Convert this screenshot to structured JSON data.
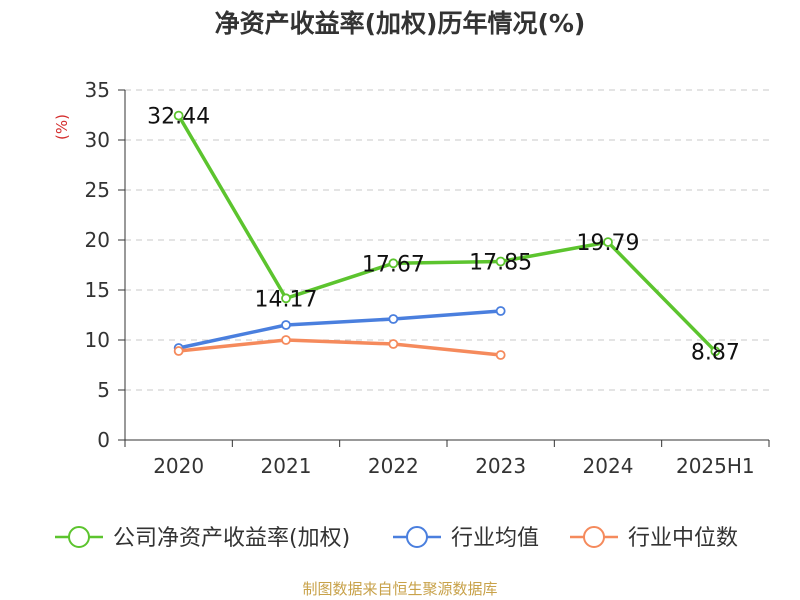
{
  "chart_data": {
    "type": "line",
    "title": "净资产收益率(加权)历年情况(%)",
    "ylabel": "(%)",
    "categories": [
      "2020",
      "2021",
      "2022",
      "2023",
      "2024",
      "2025H1"
    ],
    "ylim": [
      0,
      35
    ],
    "yticks": [
      0,
      5,
      10,
      15,
      20,
      25,
      30,
      35
    ],
    "grid": true,
    "legend_position": "bottom",
    "series": [
      {
        "name": "公司净资产收益率(加权)",
        "color": "#5cc42e",
        "values": [
          32.44,
          14.17,
          17.67,
          17.85,
          19.79,
          8.87
        ],
        "labels": [
          "32.44",
          "14.17",
          "17.67",
          "17.85",
          "19.79",
          "8.87"
        ]
      },
      {
        "name": "行业均值",
        "color": "#4a7fde",
        "values": [
          9.2,
          11.5,
          12.1,
          12.9,
          null,
          null
        ]
      },
      {
        "name": "行业中位数",
        "color": "#f58a5c",
        "values": [
          8.9,
          10.0,
          9.6,
          8.5,
          null,
          null
        ]
      }
    ],
    "source": "制图数据来自恒生聚源数据库"
  }
}
